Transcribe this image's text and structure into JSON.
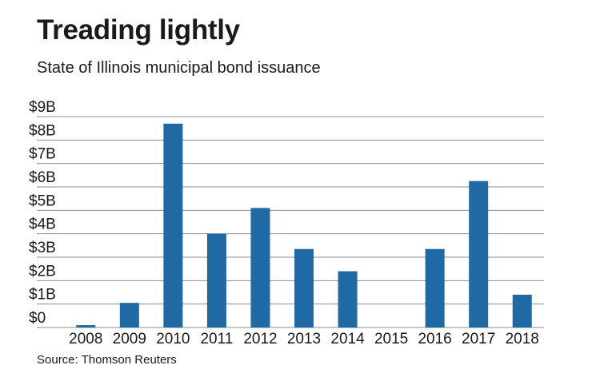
{
  "chart_data": {
    "type": "bar",
    "title": "Treading lightly",
    "subtitle": "State of Illinois municipal bond issuance",
    "source": "Source: Thomson Reuters",
    "categories": [
      "2008",
      "2009",
      "2010",
      "2011",
      "2012",
      "2013",
      "2014",
      "2015",
      "2016",
      "2017",
      "2018"
    ],
    "values": [
      0.1,
      1.05,
      8.7,
      4.0,
      5.1,
      3.35,
      2.4,
      0,
      3.35,
      6.25,
      1.4
    ],
    "unit": "billions of dollars",
    "ylim": [
      0,
      9
    ],
    "yticks": [
      0,
      1,
      2,
      3,
      4,
      5,
      6,
      7,
      8,
      9
    ],
    "ytick_labels": [
      "$0",
      "$1B",
      "$2B",
      "$3B",
      "$4B",
      "$5B",
      "$6B",
      "$7B",
      "$8B",
      "$9B"
    ],
    "xlabel": "",
    "ylabel": "",
    "grid": true,
    "bar_color": "#1f6aa5",
    "grid_color": "#8c8c8c"
  }
}
